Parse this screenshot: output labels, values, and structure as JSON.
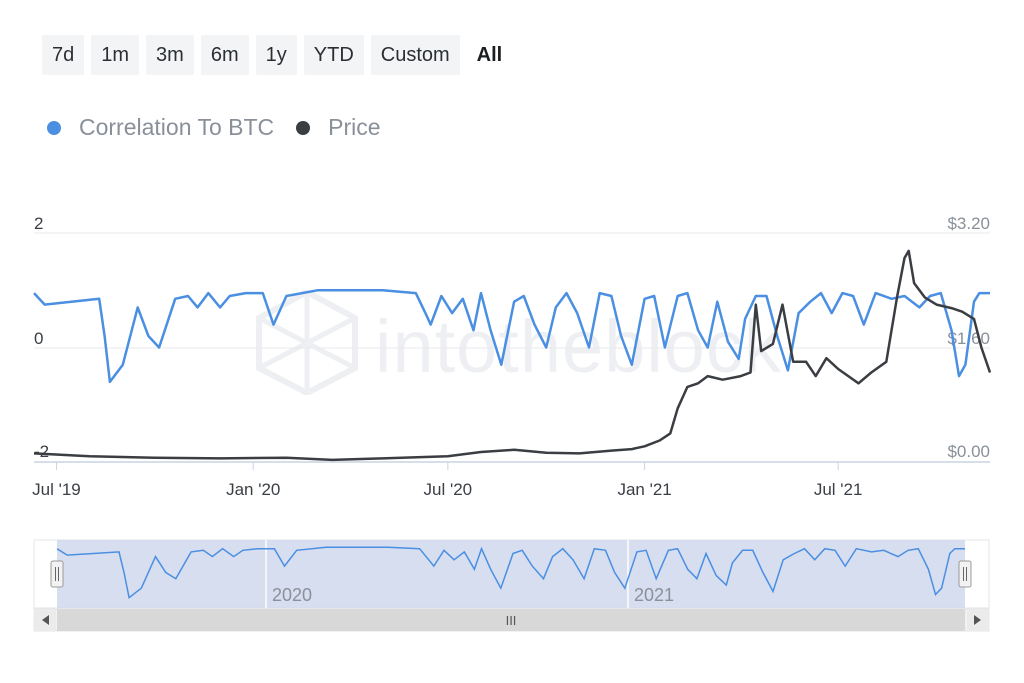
{
  "range_selector": {
    "buttons": [
      {
        "label": "7d"
      },
      {
        "label": "1m"
      },
      {
        "label": "3m"
      },
      {
        "label": "6m"
      },
      {
        "label": "1y"
      },
      {
        "label": "YTD"
      },
      {
        "label": "Custom"
      },
      {
        "label": "All"
      }
    ],
    "active": "All"
  },
  "legend": {
    "items": [
      {
        "label": "Correlation To BTC",
        "color": "#4a8fe2"
      },
      {
        "label": "Price",
        "color": "#3a3d42"
      }
    ]
  },
  "watermark": {
    "text": "intotheblock"
  },
  "navigator": {
    "labels": [
      "2020",
      "2021"
    ],
    "scrollbar_grip": "III"
  },
  "chart_data": {
    "type": "line",
    "x_ticks": [
      "Jul '19",
      "Jan '20",
      "Jul '20",
      "Jan '21",
      "Jul '21"
    ],
    "y_left": {
      "ticks": [
        "2",
        "0",
        "-2"
      ],
      "range": [
        -2,
        2
      ]
    },
    "y_right": {
      "ticks": [
        "$3.20",
        "$1.60",
        "$0.00"
      ],
      "range": [
        0,
        3.2
      ]
    },
    "x_range": [
      "2019-06-10",
      "2021-11-20"
    ],
    "series": [
      {
        "name": "Correlation To BTC",
        "axis": "left",
        "color": "#4a8fe2",
        "points": [
          [
            "2019-06-10",
            0.95
          ],
          [
            "2019-06-20",
            0.75
          ],
          [
            "2019-08-10",
            0.85
          ],
          [
            "2019-08-15",
            0.2
          ],
          [
            "2019-08-20",
            -0.6
          ],
          [
            "2019-09-01",
            -0.3
          ],
          [
            "2019-09-15",
            0.7
          ],
          [
            "2019-09-25",
            0.2
          ],
          [
            "2019-10-05",
            0.0
          ],
          [
            "2019-10-20",
            0.85
          ],
          [
            "2019-11-01",
            0.9
          ],
          [
            "2019-11-10",
            0.7
          ],
          [
            "2019-11-20",
            0.95
          ],
          [
            "2019-12-01",
            0.7
          ],
          [
            "2019-12-10",
            0.9
          ],
          [
            "2019-12-25",
            0.95
          ],
          [
            "2020-01-10",
            0.95
          ],
          [
            "2020-01-20",
            0.4
          ],
          [
            "2020-02-01",
            0.9
          ],
          [
            "2020-03-01",
            1.0
          ],
          [
            "2020-04-01",
            1.0
          ],
          [
            "2020-05-01",
            1.0
          ],
          [
            "2020-06-01",
            0.95
          ],
          [
            "2020-06-10",
            0.6
          ],
          [
            "2020-06-15",
            0.4
          ],
          [
            "2020-06-25",
            0.9
          ],
          [
            "2020-07-05",
            0.6
          ],
          [
            "2020-07-15",
            0.85
          ],
          [
            "2020-07-25",
            0.3
          ],
          [
            "2020-08-01",
            0.95
          ],
          [
            "2020-08-10",
            0.3
          ],
          [
            "2020-08-20",
            -0.3
          ],
          [
            "2020-09-01",
            0.8
          ],
          [
            "2020-09-10",
            0.9
          ],
          [
            "2020-09-20",
            0.4
          ],
          [
            "2020-10-01",
            0.0
          ],
          [
            "2020-10-10",
            0.7
          ],
          [
            "2020-10-20",
            0.95
          ],
          [
            "2020-10-30",
            0.6
          ],
          [
            "2020-11-10",
            0.0
          ],
          [
            "2020-11-20",
            0.95
          ],
          [
            "2020-12-01",
            0.9
          ],
          [
            "2020-12-10",
            0.2
          ],
          [
            "2020-12-20",
            -0.3
          ],
          [
            "2021-01-01",
            0.85
          ],
          [
            "2021-01-10",
            0.9
          ],
          [
            "2021-01-20",
            0.0
          ],
          [
            "2021-02-01",
            0.9
          ],
          [
            "2021-02-10",
            0.95
          ],
          [
            "2021-02-20",
            0.3
          ],
          [
            "2021-03-01",
            0.0
          ],
          [
            "2021-03-10",
            0.8
          ],
          [
            "2021-03-20",
            0.1
          ],
          [
            "2021-03-30",
            -0.2
          ],
          [
            "2021-04-05",
            0.5
          ],
          [
            "2021-04-15",
            0.9
          ],
          [
            "2021-04-25",
            0.9
          ],
          [
            "2021-05-05",
            0.2
          ],
          [
            "2021-05-15",
            -0.4
          ],
          [
            "2021-05-25",
            0.6
          ],
          [
            "2021-06-05",
            0.8
          ],
          [
            "2021-06-15",
            0.95
          ],
          [
            "2021-06-25",
            0.6
          ],
          [
            "2021-07-05",
            0.95
          ],
          [
            "2021-07-15",
            0.9
          ],
          [
            "2021-07-25",
            0.4
          ],
          [
            "2021-08-05",
            0.95
          ],
          [
            "2021-08-20",
            0.85
          ],
          [
            "2021-09-01",
            0.9
          ],
          [
            "2021-09-15",
            0.7
          ],
          [
            "2021-09-25",
            0.9
          ],
          [
            "2021-10-05",
            0.95
          ],
          [
            "2021-10-15",
            0.3
          ],
          [
            "2021-10-22",
            -0.5
          ],
          [
            "2021-10-28",
            -0.3
          ],
          [
            "2021-11-05",
            0.8
          ],
          [
            "2021-11-10",
            0.95
          ],
          [
            "2021-11-20",
            0.95
          ]
        ]
      },
      {
        "name": "Price",
        "axis": "right",
        "color": "#3a3d42",
        "points": [
          [
            "2019-06-10",
            0.12
          ],
          [
            "2019-08-01",
            0.08
          ],
          [
            "2019-10-01",
            0.06
          ],
          [
            "2019-12-01",
            0.05
          ],
          [
            "2020-02-01",
            0.06
          ],
          [
            "2020-03-15",
            0.03
          ],
          [
            "2020-05-01",
            0.05
          ],
          [
            "2020-07-01",
            0.08
          ],
          [
            "2020-08-01",
            0.14
          ],
          [
            "2020-09-01",
            0.17
          ],
          [
            "2020-10-01",
            0.13
          ],
          [
            "2020-11-01",
            0.12
          ],
          [
            "2020-12-01",
            0.16
          ],
          [
            "2020-12-20",
            0.18
          ],
          [
            "2021-01-01",
            0.22
          ],
          [
            "2021-01-15",
            0.3
          ],
          [
            "2021-01-25",
            0.4
          ],
          [
            "2021-02-01",
            0.75
          ],
          [
            "2021-02-10",
            1.05
          ],
          [
            "2021-02-20",
            1.1
          ],
          [
            "2021-03-01",
            1.2
          ],
          [
            "2021-03-15",
            1.15
          ],
          [
            "2021-04-01",
            1.2
          ],
          [
            "2021-04-10",
            1.25
          ],
          [
            "2021-04-15",
            2.2
          ],
          [
            "2021-04-20",
            1.55
          ],
          [
            "2021-05-01",
            1.65
          ],
          [
            "2021-05-10",
            2.2
          ],
          [
            "2021-05-20",
            1.4
          ],
          [
            "2021-06-01",
            1.4
          ],
          [
            "2021-06-10",
            1.2
          ],
          [
            "2021-06-20",
            1.45
          ],
          [
            "2021-07-01",
            1.3
          ],
          [
            "2021-07-20",
            1.1
          ],
          [
            "2021-08-01",
            1.25
          ],
          [
            "2021-08-15",
            1.4
          ],
          [
            "2021-08-25",
            2.3
          ],
          [
            "2021-09-01",
            2.85
          ],
          [
            "2021-09-05",
            2.95
          ],
          [
            "2021-09-10",
            2.5
          ],
          [
            "2021-09-20",
            2.3
          ],
          [
            "2021-10-01",
            2.2
          ],
          [
            "2021-10-15",
            2.15
          ],
          [
            "2021-10-25",
            2.1
          ],
          [
            "2021-11-05",
            2.0
          ],
          [
            "2021-11-12",
            1.6
          ],
          [
            "2021-11-20",
            1.25
          ]
        ]
      }
    ]
  }
}
